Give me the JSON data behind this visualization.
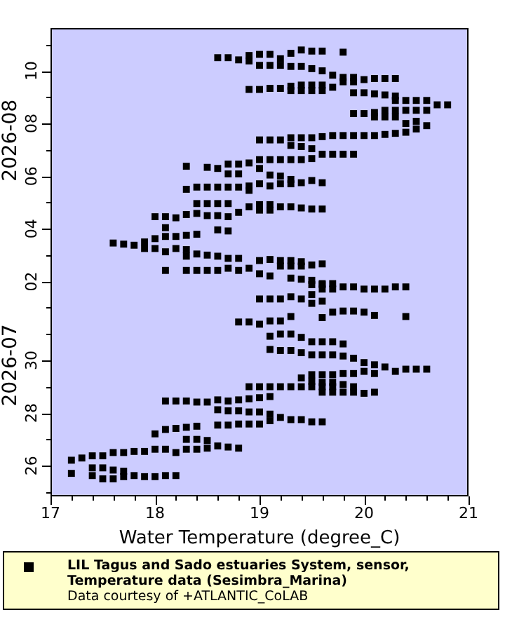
{
  "chart_data": {
    "type": "scatter",
    "orientation": "horizontal",
    "xlabel": "Water Temperature (degree_C)",
    "xlim": [
      17,
      21
    ],
    "xticks": [
      17,
      {
        "value": 17.2,
        "label": null
      },
      {
        "value": 17.4,
        "label": null
      },
      {
        "value": 17.6,
        "label": null
      },
      {
        "value": 17.8,
        "label": null
      },
      18,
      {
        "value": 18.2,
        "label": null
      },
      {
        "value": 18.4,
        "label": null
      },
      {
        "value": 18.6,
        "label": null
      },
      {
        "value": 18.8,
        "label": null
      },
      19,
      {
        "value": 19.2,
        "label": null
      },
      {
        "value": 19.4,
        "label": null
      },
      {
        "value": 19.6,
        "label": null
      },
      {
        "value": 19.8,
        "label": null
      },
      20,
      {
        "value": 20.2,
        "label": null
      },
      {
        "value": 20.4,
        "label": null
      },
      {
        "value": 20.6,
        "label": null
      },
      {
        "value": 20.8,
        "label": null
      },
      21
    ],
    "ylim": [
      "2026-07-24T20:00",
      "2026-08-11T15:00"
    ],
    "yticks": [
      {
        "value": "2026-07-25",
        "label": null
      },
      {
        "value": "2026-07-26",
        "label": "26"
      },
      {
        "value": "2026-07-27",
        "label": null
      },
      {
        "value": "2026-07-28",
        "label": "28"
      },
      {
        "value": "2026-07-29",
        "label": null
      },
      {
        "value": "2026-07-30",
        "label": "30"
      },
      {
        "value": "2026-07-31",
        "label": null
      },
      {
        "value": "2026-08-01",
        "label": null
      },
      {
        "value": "2026-08-02",
        "label": "02"
      },
      {
        "value": "2026-08-03",
        "label": null
      },
      {
        "value": "2026-08-04",
        "label": "04"
      },
      {
        "value": "2026-08-05",
        "label": null
      },
      {
        "value": "2026-08-06",
        "label": "06"
      },
      {
        "value": "2026-08-07",
        "label": null
      },
      {
        "value": "2026-08-08",
        "label": "08"
      },
      {
        "value": "2026-08-09",
        "label": null
      },
      {
        "value": "2026-08-10",
        "label": "10"
      },
      {
        "value": "2026-08-11",
        "label": null
      }
    ],
    "annotations": [
      "2026-07",
      "2026-08",
      "Data courtesy of +ATLANTIC_CoLAB"
    ],
    "legend": "bottom",
    "marker": "square",
    "x": [
      "2026-08-10T12:00",
      "2026-08-10T12:00",
      "2026-08-10T10:00",
      "2026-08-10T14:00",
      "2026-08-10T09:00",
      "2026-08-10T15:00",
      "2026-08-10T05:00",
      "2026-08-10T15:00",
      "2026-08-10T05:00",
      "2026-08-10T11:00",
      "2026-08-10T05:00",
      "2026-08-10T16:00",
      "2026-08-10T04:00",
      "2026-08-10T19:00",
      "2026-08-10T04:00",
      "2026-08-10T18:00",
      "2026-08-10T02:00",
      "2026-08-10T18:00",
      "2026-08-10T00:00",
      "2026-08-09T20:00",
      "2026-08-10T17:00",
      "2026-08-09T18:00",
      "2026-08-09T14:00",
      "2026-08-09T18:00",
      "2026-08-09T14:00",
      "2026-08-09T16:00",
      "2026-08-09T17:00",
      "2026-08-09T17:00",
      "2026-08-09T17:00",
      "2026-08-09T07:00",
      "2026-08-09T07:00",
      "2026-08-09T08:00",
      "2026-08-09T08:00",
      "2026-08-09T10:00",
      "2026-08-09T06:00",
      "2026-08-09T11:00",
      "2026-08-09T06:00",
      "2026-08-09T11:00",
      "2026-08-09T06:00",
      "2026-08-09T11:00",
      "2026-08-09T06:00",
      "2026-08-09T09:00",
      "2026-08-09T04:00",
      "2026-08-09T04:00",
      "2026-08-09T03:00",
      "2026-08-09T02:00",
      "2026-08-09T01:00",
      "2026-08-08T21:00",
      "2026-08-08T21:00",
      "2026-08-08T12:00",
      "2026-08-08T21:00",
      "2026-08-08T12:00",
      "2026-08-08T21:00",
      "2026-08-08T12:00",
      "2026-08-08T17:00",
      "2026-08-08T17:00",
      "2026-08-08T09:00",
      "2026-08-08T09:00",
      "2026-08-08T10:00",
      "2026-08-08T06:00",
      "2026-08-08T12:00",
      "2026-08-08T06:00",
      "2026-08-08T12:00",
      "2026-08-08T06:00",
      "2026-08-08T00:00",
      "2026-08-07T16:00",
      "2026-08-08T02:00",
      "2026-08-07T19:00",
      "2026-08-07T22:00",
      "2026-08-07T09:00",
      "2026-08-07T09:00",
      "2026-08-07T09:00",
      "2026-08-07T11:00",
      "2026-08-07T04:00",
      "2026-08-07T11:00",
      "2026-08-07T03:00",
      "2026-08-07T11:00",
      "2026-08-07T01:00",
      "2026-08-07T12:00",
      "2026-08-07T13:00",
      "2026-08-07T13:00",
      "2026-08-07T13:00",
      "2026-08-07T13:00",
      "2026-08-07T13:00",
      "2026-08-07T14:00",
      "2026-08-07T15:00",
      "2026-08-06T20:00",
      "2026-08-06T20:00",
      "2026-08-06T20:00",
      "2026-08-06T20:00",
      "2026-08-06T15:00",
      "2026-08-06T15:00",
      "2026-08-06T15:00",
      "2026-08-06T15:00",
      "2026-08-06T15:00",
      "2026-08-06T16:00",
      "2026-08-06T12:00",
      "2026-08-06T09:00",
      "2026-08-06T08:00",
      "2026-08-06T07:00",
      "2026-08-06T11:00",
      "2026-08-06T02:00",
      "2026-08-06T11:00",
      "2026-08-06T02:00",
      "2026-08-05T15:00",
      "2026-08-06T07:00",
      "2026-08-05T17:00",
      "2026-08-06T01:00",
      "2026-08-05T15:00",
      "2026-08-06T00:00",
      "2026-08-05T17:00",
      "2026-08-05T21:00",
      "2026-08-05T17:00",
      "2026-08-05T18:00",
      "2026-08-05T20:00",
      "2026-08-05T18:00",
      "2026-08-05T12:00",
      "2026-08-05T14:00",
      "2026-08-04T23:00",
      "2026-08-05T14:00",
      "2026-08-04T23:00",
      "2026-08-05T14:00",
      "2026-08-04T23:00",
      "2026-08-05T14:00",
      "2026-08-04T23:00",
      "2026-08-05T14:00",
      "2026-08-04T15:00",
      "2026-08-05T11:00",
      "2026-08-04T20:00",
      "2026-08-04T22:00",
      "2026-08-04T17:00",
      "2026-08-04T22:00",
      "2026-08-04T17:00",
      "2026-08-04T20:00",
      "2026-08-04T20:00",
      "2026-08-04T19:00",
      "2026-08-04T18:00",
      "2026-08-04T18:00",
      "2026-08-04T11:00",
      "2026-08-04T11:00",
      "2026-08-04T01:00",
      "2026-08-04T10:00",
      "2026-08-03T17:00",
      "2026-08-04T13:00",
      "2026-08-03T18:00",
      "2026-08-04T14:00",
      "2026-08-03T19:00",
      "2026-08-04T12:00",
      "2026-08-04T12:00",
      "2026-08-03T23:00",
      "2026-08-04T11:00",
      "2026-08-03T22:00",
      "2026-08-03T11:00",
      "2026-08-03T10:00",
      "2026-08-03T09:00",
      "2026-08-03T12:00",
      "2026-08-03T06:00",
      "2026-08-03T15:00",
      "2026-08-03T06:00",
      "2026-08-03T17:00",
      "2026-08-03T03:00",
      "2026-08-03T06:00",
      "2026-08-03T05:00",
      "2026-08-02T23:00",
      "2026-08-03T01:00",
      "2026-08-03T00:00",
      "2026-08-02T23:00",
      "2026-08-02T21:00",
      "2026-08-02T21:00",
      "2026-08-02T10:00",
      "2026-08-02T12:00",
      "2026-08-02T19:00",
      "2026-08-02T07:00",
      "2026-08-02T20:00",
      "2026-08-02T05:00",
      "2026-08-02T10:00",
      "2026-08-02T10:00",
      "2026-08-02T10:00",
      "2026-08-02T10:00",
      "2026-08-02T10:00",
      "2026-08-02T12:00",
      "2026-08-02T19:00",
      "2026-08-02T14:00",
      "2026-08-02T19:00",
      "2026-08-02T14:00",
      "2026-08-02T18:00",
      "2026-08-02T14:00",
      "2026-08-02T15:00",
      "2026-08-02T16:00",
      "2026-08-02T03:00",
      "2026-08-02T02:00",
      "2026-08-02T01:00",
      "2026-08-01T21:00",
      "2026-08-01T22:00",
      "2026-08-01T17:00",
      "2026-08-01T22:00",
      "2026-08-01T17:00",
      "2026-08-01T19:00",
      "2026-08-01T19:00",
      "2026-08-01T17:00",
      "2026-08-01T17:00",
      "2026-08-01T17:00",
      "2026-08-01T19:00",
      "2026-08-01T19:00",
      "2026-08-01T08:00",
      "2026-08-01T08:00",
      "2026-08-01T08:00",
      "2026-08-01T10:00",
      "2026-08-01T08:00",
      "2026-08-01T12:00",
      "2026-08-01T04:00",
      "2026-08-01T21:00",
      "2026-08-01T06:00",
      "2026-07-31T15:00",
      "2026-07-31T20:00",
      "2026-07-31T21:00",
      "2026-07-31T21:00",
      "2026-07-31T20:00",
      "2026-07-31T17:00",
      "2026-07-31T16:00",
      "2026-07-31T11:00",
      "2026-07-31T11:00",
      "2026-07-31T09:00",
      "2026-07-31T12:00",
      "2026-07-30T22:00",
      "2026-07-30T10:00",
      "2026-07-31T12:00",
      "2026-07-31T00:00",
      "2026-07-30T09:00",
      "2026-07-31T16:00",
      "2026-07-31T00:00",
      "2026-07-30T09:00",
      "2026-07-30T21:00",
      "2026-07-30T07:00",
      "2026-07-30T17:00",
      "2026-07-30T05:00",
      "2026-07-30T17:00",
      "2026-07-30T05:00",
      "2026-07-30T17:00",
      "2026-07-30T05:00",
      "2026-07-30T15:00",
      "2026-07-30T04:00",
      "2026-07-29T12:00",
      "2026-07-30T02:00",
      "2026-07-29T12:00",
      "2026-07-29T22:00",
      "2026-07-29T14:00",
      "2026-07-29T20:00",
      "2026-07-29T12:00",
      "2026-07-29T18:00",
      "2026-07-29T14:00",
      "2026-07-29T16:00",
      "2026-07-29T16:00",
      "2026-07-29T16:00",
      "2026-07-29T08:00",
      "2026-07-29T11:00",
      "2026-07-29T05:00",
      "2026-07-29T11:00",
      "2026-07-29T04:00",
      "2026-07-29T11:00",
      "2026-07-29T04:00",
      "2026-07-29T00:00",
      "2026-07-29T00:00",
      "2026-07-29T00:00",
      "2026-07-29T00:00",
      "2026-07-29T00:00",
      "2026-07-29T00:00",
      "2026-07-29T00:00",
      "2026-07-29T00:00",
      "2026-07-28T19:00",
      "2026-07-29T00:00",
      "2026-07-28T19:00",
      "2026-07-29T02:00",
      "2026-07-28T19:00",
      "2026-07-29T00:00",
      "2026-07-28T19:00",
      "2026-07-28T18:00",
      "2026-07-28T19:00",
      "2026-07-28T01:00",
      "2026-07-27T14:00",
      "2026-07-28T01:00",
      "2026-07-27T14:00",
      "2026-07-27T23:00",
      "2026-07-27T17:00",
      "2026-07-27T20:00",
      "2026-07-27T18:00",
      "2026-07-27T18:00",
      "2026-07-27T16:00",
      "2026-07-27T16:00",
      "2026-07-28T11:00",
      "2026-07-28T11:00",
      "2026-07-28T11:00",
      "2026-07-28T10:00",
      "2026-07-28T10:00",
      "2026-07-28T12:00",
      "2026-07-28T03:00",
      "2026-07-28T11:00",
      "2026-07-28T02:00",
      "2026-07-28T12:00",
      "2026-07-28T02:00",
      "2026-07-28T13:00",
      "2026-07-28T14:00",
      "2026-07-28T15:00",
      "2026-07-27T13:00",
      "2026-07-27T13:00",
      "2026-07-27T14:00",
      "2026-07-27T05:00",
      "2026-07-27T09:00",
      "2026-07-26T15:00",
      "2026-07-27T10:00",
      "2026-07-26T12:00",
      "2026-07-27T11:00",
      "2026-07-27T00:00",
      "2026-07-26T15:00",
      "2026-07-27T12:00",
      "2026-07-27T00:00",
      "2026-07-26T15:00",
      "2026-07-26T23:00",
      "2026-07-26T16:00",
      "2026-07-26T18:00",
      "2026-07-26T17:00",
      "2026-07-26T16:00",
      "2026-07-26T05:00",
      "2026-07-26T07:00",
      "2026-07-26T09:00",
      "2026-07-25T22:00",
      "2026-07-26T09:00",
      "2026-07-25T22:00",
      "2026-07-25T12:00",
      "2026-07-26T12:00",
      "2026-07-26T12:00",
      "2026-07-26T13:00",
      "2026-07-26T13:00",
      "2026-07-26T15:00",
      "2026-07-25T17:00",
      "2026-07-25T15:00",
      "2026-07-25T20:00",
      "2026-07-25T12:00",
      "2026-07-25T19:00",
      "2026-07-25T14:00",
      "2026-07-25T15:00",
      "2026-07-25T14:00",
      "2026-07-25T14:00",
      "2026-07-25T15:00",
      "2026-07-25T15:00"
    ],
    "series": [
      {
        "name": "LIL Tagus and Sado estuaries System, sensor, Temperature data (Sesimbra_Marina)",
        "color": "#000000",
        "values": [
          18.6,
          18.7,
          18.8,
          18.9,
          18.9,
          19.0,
          19.0,
          19.1,
          19.1,
          19.2,
          19.2,
          19.3,
          19.3,
          19.4,
          19.4,
          19.5,
          19.5,
          19.6,
          19.6,
          19.7,
          19.8,
          19.8,
          19.8,
          19.9,
          19.9,
          20.0,
          20.1,
          20.2,
          20.3,
          18.9,
          19.0,
          19.1,
          19.2,
          19.3,
          19.3,
          19.4,
          19.4,
          19.5,
          19.5,
          19.6,
          19.6,
          19.7,
          19.9,
          20.0,
          20.1,
          20.2,
          20.3,
          20.3,
          20.4,
          20.4,
          20.5,
          20.5,
          20.6,
          20.6,
          20.7,
          20.8,
          19.9,
          20.0,
          20.1,
          20.1,
          20.2,
          20.2,
          20.3,
          20.3,
          20.4,
          20.4,
          20.5,
          20.5,
          20.6,
          19.0,
          19.1,
          19.2,
          19.3,
          19.3,
          19.4,
          19.4,
          19.5,
          19.5,
          19.6,
          19.7,
          19.8,
          19.9,
          20.0,
          20.1,
          20.2,
          20.3,
          19.6,
          19.7,
          19.8,
          19.9,
          19.0,
          19.1,
          19.2,
          19.3,
          19.4,
          19.5,
          18.9,
          18.3,
          18.5,
          18.6,
          18.7,
          18.7,
          18.8,
          18.8,
          18.9,
          19.0,
          19.0,
          19.1,
          19.1,
          19.2,
          19.2,
          19.3,
          19.3,
          19.4,
          19.5,
          19.6,
          18.3,
          18.4,
          18.4,
          18.5,
          18.5,
          18.6,
          18.6,
          18.7,
          18.7,
          18.8,
          18.8,
          18.9,
          18.9,
          19.0,
          19.0,
          19.1,
          19.1,
          19.2,
          19.3,
          19.4,
          19.5,
          19.6,
          18.0,
          18.1,
          18.1,
          18.2,
          18.2,
          18.3,
          18.3,
          18.4,
          18.4,
          18.5,
          18.6,
          18.6,
          18.7,
          18.7,
          17.6,
          17.7,
          17.8,
          17.9,
          17.9,
          18.0,
          18.0,
          18.1,
          18.1,
          18.2,
          18.3,
          18.3,
          18.4,
          18.5,
          18.6,
          18.7,
          18.8,
          18.8,
          18.9,
          19.0,
          19.0,
          19.1,
          19.1,
          18.1,
          18.3,
          18.4,
          18.5,
          18.6,
          18.7,
          19.2,
          19.2,
          19.3,
          19.3,
          19.4,
          19.4,
          19.5,
          19.6,
          19.3,
          19.4,
          19.5,
          19.5,
          19.6,
          19.6,
          19.7,
          19.7,
          19.8,
          19.9,
          20.0,
          20.1,
          20.2,
          20.3,
          20.4,
          19.0,
          19.1,
          19.2,
          19.3,
          19.4,
          19.5,
          19.5,
          19.6,
          19.6,
          19.6,
          19.7,
          19.8,
          19.9,
          20.0,
          20.1,
          20.4,
          18.8,
          18.9,
          19.0,
          19.1,
          19.1,
          19.1,
          19.2,
          19.2,
          19.2,
          19.3,
          19.3,
          19.3,
          19.4,
          19.4,
          19.5,
          19.5,
          19.6,
          19.6,
          19.7,
          19.7,
          19.8,
          19.8,
          19.8,
          19.9,
          19.9,
          20.0,
          20.0,
          20.1,
          20.1,
          20.2,
          20.3,
          20.4,
          20.5,
          20.6,
          19.4,
          19.5,
          19.5,
          19.6,
          19.6,
          19.7,
          19.7,
          18.9,
          19.0,
          19.1,
          19.2,
          19.3,
          19.4,
          19.5,
          19.6,
          19.6,
          19.7,
          19.7,
          19.8,
          19.8,
          19.9,
          19.9,
          20.0,
          20.1,
          18.9,
          18.9,
          19.0,
          19.0,
          19.1,
          19.1,
          19.2,
          19.3,
          19.4,
          19.5,
          19.6,
          18.1,
          18.2,
          18.3,
          18.4,
          18.5,
          18.6,
          18.6,
          18.7,
          18.7,
          18.8,
          18.8,
          18.9,
          19.0,
          19.1,
          18.6,
          18.7,
          18.8,
          18.0,
          18.1,
          18.1,
          18.2,
          18.2,
          18.3,
          18.3,
          18.3,
          18.4,
          18.4,
          18.4,
          18.5,
          18.5,
          18.6,
          18.7,
          18.8,
          17.2,
          17.3,
          17.4,
          17.4,
          17.5,
          17.5,
          17.5,
          17.6,
          17.7,
          17.8,
          17.9,
          18.0,
          17.2,
          17.4,
          17.6,
          17.6,
          17.7,
          17.7,
          17.8,
          17.9,
          18.0,
          18.1,
          18.2
        ]
      }
    ]
  }
}
